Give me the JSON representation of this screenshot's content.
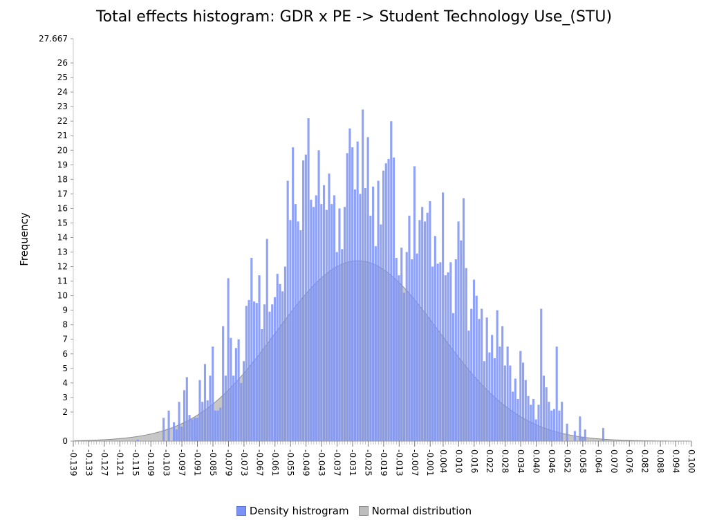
{
  "chart_data": {
    "type": "bar",
    "title": "Total effects histogram: GDR x PE -> Student Technology Use_(STU)",
    "xlabel": "",
    "ylabel": "Frequency",
    "ylim": [
      0,
      27.667
    ],
    "xlim": [
      -0.139,
      0.1
    ],
    "y_ticks": [
      "0",
      "2",
      "3",
      "4",
      "5",
      "6",
      "7",
      "8",
      "9",
      "10",
      "11",
      "12",
      "13",
      "14",
      "15",
      "16",
      "17",
      "18",
      "19",
      "20",
      "21",
      "22",
      "23",
      "24",
      "25",
      "26",
      "27.667"
    ],
    "x_ticks": [
      "-0.139",
      "-0.133",
      "-0.127",
      "-0.121",
      "-0.115",
      "-0.109",
      "-0.103",
      "-0.097",
      "-0.091",
      "-0.085",
      "-0.079",
      "-0.073",
      "-0.067",
      "-0.061",
      "-0.055",
      "-0.049",
      "-0.043",
      "-0.037",
      "-0.031",
      "-0.025",
      "-0.019",
      "-0.013",
      "-0.007",
      "-0.001",
      "0.004",
      "0.010",
      "0.016",
      "0.022",
      "0.028",
      "0.034",
      "0.040",
      "0.046",
      "0.052",
      "0.058",
      "0.064",
      "0.070",
      "0.076",
      "0.082",
      "0.088",
      "0.094",
      "0.100"
    ],
    "bin_width": 0.001,
    "series": [
      {
        "name": "Density histrogram",
        "type": "histogram",
        "color": "#7b92f5",
        "bins": [
          {
            "x": -0.114,
            "y": 0.1
          },
          {
            "x": -0.104,
            "y": 1.6
          },
          {
            "x": -0.102,
            "y": 2.1
          },
          {
            "x": -0.1,
            "y": 1.3
          },
          {
            "x": -0.099,
            "y": 0.8
          },
          {
            "x": -0.098,
            "y": 2.7
          },
          {
            "x": -0.097,
            "y": 1.0
          },
          {
            "x": -0.096,
            "y": 3.5
          },
          {
            "x": -0.095,
            "y": 4.4
          },
          {
            "x": -0.094,
            "y": 1.8
          },
          {
            "x": -0.093,
            "y": 1.5
          },
          {
            "x": -0.092,
            "y": 1.6
          },
          {
            "x": -0.091,
            "y": 1.6
          },
          {
            "x": -0.09,
            "y": 4.2
          },
          {
            "x": -0.089,
            "y": 2.7
          },
          {
            "x": -0.088,
            "y": 5.3
          },
          {
            "x": -0.087,
            "y": 2.8
          },
          {
            "x": -0.086,
            "y": 4.5
          },
          {
            "x": -0.085,
            "y": 6.5
          },
          {
            "x": -0.084,
            "y": 2.1
          },
          {
            "x": -0.083,
            "y": 2.1
          },
          {
            "x": -0.082,
            "y": 2.3
          },
          {
            "x": -0.081,
            "y": 7.9
          },
          {
            "x": -0.08,
            "y": 4.5
          },
          {
            "x": -0.079,
            "y": 11.2
          },
          {
            "x": -0.078,
            "y": 7.1
          },
          {
            "x": -0.077,
            "y": 4.5
          },
          {
            "x": -0.076,
            "y": 6.4
          },
          {
            "x": -0.075,
            "y": 7.0
          },
          {
            "x": -0.074,
            "y": 4.0
          },
          {
            "x": -0.073,
            "y": 5.5
          },
          {
            "x": -0.072,
            "y": 9.3
          },
          {
            "x": -0.071,
            "y": 9.7
          },
          {
            "x": -0.07,
            "y": 12.6
          },
          {
            "x": -0.069,
            "y": 9.6
          },
          {
            "x": -0.068,
            "y": 9.5
          },
          {
            "x": -0.067,
            "y": 11.4
          },
          {
            "x": -0.066,
            "y": 7.7
          },
          {
            "x": -0.065,
            "y": 9.4
          },
          {
            "x": -0.064,
            "y": 13.9
          },
          {
            "x": -0.063,
            "y": 8.9
          },
          {
            "x": -0.062,
            "y": 9.4
          },
          {
            "x": -0.061,
            "y": 9.9
          },
          {
            "x": -0.06,
            "y": 11.5
          },
          {
            "x": -0.059,
            "y": 10.8
          },
          {
            "x": -0.058,
            "y": 10.3
          },
          {
            "x": -0.057,
            "y": 12.0
          },
          {
            "x": -0.056,
            "y": 17.9
          },
          {
            "x": -0.055,
            "y": 15.2
          },
          {
            "x": -0.054,
            "y": 20.2
          },
          {
            "x": -0.053,
            "y": 16.3
          },
          {
            "x": -0.052,
            "y": 15.1
          },
          {
            "x": -0.051,
            "y": 14.5
          },
          {
            "x": -0.05,
            "y": 19.3
          },
          {
            "x": -0.049,
            "y": 19.7
          },
          {
            "x": -0.048,
            "y": 22.2
          },
          {
            "x": -0.047,
            "y": 16.6
          },
          {
            "x": -0.046,
            "y": 16.1
          },
          {
            "x": -0.045,
            "y": 16.9
          },
          {
            "x": -0.044,
            "y": 20.0
          },
          {
            "x": -0.043,
            "y": 16.3
          },
          {
            "x": -0.042,
            "y": 17.6
          },
          {
            "x": -0.041,
            "y": 15.9
          },
          {
            "x": -0.04,
            "y": 18.4
          },
          {
            "x": -0.039,
            "y": 16.3
          },
          {
            "x": -0.038,
            "y": 16.9
          },
          {
            "x": -0.037,
            "y": 13.0
          },
          {
            "x": -0.036,
            "y": 16.0
          },
          {
            "x": -0.035,
            "y": 13.2
          },
          {
            "x": -0.034,
            "y": 16.1
          },
          {
            "x": -0.033,
            "y": 19.8
          },
          {
            "x": -0.032,
            "y": 21.5
          },
          {
            "x": -0.031,
            "y": 20.2
          },
          {
            "x": -0.03,
            "y": 17.3
          },
          {
            "x": -0.029,
            "y": 20.6
          },
          {
            "x": -0.028,
            "y": 17.0
          },
          {
            "x": -0.027,
            "y": 22.8
          },
          {
            "x": -0.026,
            "y": 17.4
          },
          {
            "x": -0.025,
            "y": 20.9
          },
          {
            "x": -0.024,
            "y": 15.5
          },
          {
            "x": -0.023,
            "y": 17.5
          },
          {
            "x": -0.022,
            "y": 13.4
          },
          {
            "x": -0.021,
            "y": 17.9
          },
          {
            "x": -0.02,
            "y": 14.9
          },
          {
            "x": -0.019,
            "y": 18.6
          },
          {
            "x": -0.018,
            "y": 19.1
          },
          {
            "x": -0.017,
            "y": 19.4
          },
          {
            "x": -0.016,
            "y": 22.0
          },
          {
            "x": -0.015,
            "y": 19.5
          },
          {
            "x": -0.014,
            "y": 12.6
          },
          {
            "x": -0.013,
            "y": 11.4
          },
          {
            "x": -0.012,
            "y": 13.3
          },
          {
            "x": -0.011,
            "y": 10.2
          },
          {
            "x": -0.01,
            "y": 13.0
          },
          {
            "x": -0.009,
            "y": 15.5
          },
          {
            "x": -0.008,
            "y": 12.5
          },
          {
            "x": -0.007,
            "y": 18.9
          },
          {
            "x": -0.006,
            "y": 12.9
          },
          {
            "x": -0.005,
            "y": 15.2
          },
          {
            "x": -0.004,
            "y": 16.1
          },
          {
            "x": -0.003,
            "y": 15.1
          },
          {
            "x": -0.002,
            "y": 15.7
          },
          {
            "x": -0.001,
            "y": 16.5
          },
          {
            "x": 0.0,
            "y": 12.0
          },
          {
            "x": 0.001,
            "y": 14.1
          },
          {
            "x": 0.002,
            "y": 12.2
          },
          {
            "x": 0.003,
            "y": 12.3
          },
          {
            "x": 0.004,
            "y": 17.1
          },
          {
            "x": 0.005,
            "y": 11.4
          },
          {
            "x": 0.006,
            "y": 11.6
          },
          {
            "x": 0.007,
            "y": 12.3
          },
          {
            "x": 0.008,
            "y": 8.8
          },
          {
            "x": 0.009,
            "y": 12.5
          },
          {
            "x": 0.01,
            "y": 15.1
          },
          {
            "x": 0.011,
            "y": 13.8
          },
          {
            "x": 0.012,
            "y": 16.7
          },
          {
            "x": 0.013,
            "y": 11.9
          },
          {
            "x": 0.014,
            "y": 7.6
          },
          {
            "x": 0.015,
            "y": 9.1
          },
          {
            "x": 0.016,
            "y": 11.1
          },
          {
            "x": 0.017,
            "y": 10.0
          },
          {
            "x": 0.018,
            "y": 8.4
          },
          {
            "x": 0.019,
            "y": 9.1
          },
          {
            "x": 0.02,
            "y": 5.5
          },
          {
            "x": 0.021,
            "y": 8.5
          },
          {
            "x": 0.022,
            "y": 6.1
          },
          {
            "x": 0.023,
            "y": 7.3
          },
          {
            "x": 0.024,
            "y": 5.7
          },
          {
            "x": 0.025,
            "y": 9.0
          },
          {
            "x": 0.026,
            "y": 6.5
          },
          {
            "x": 0.027,
            "y": 7.9
          },
          {
            "x": 0.028,
            "y": 5.2
          },
          {
            "x": 0.029,
            "y": 6.5
          },
          {
            "x": 0.03,
            "y": 5.2
          },
          {
            "x": 0.031,
            "y": 3.4
          },
          {
            "x": 0.032,
            "y": 4.3
          },
          {
            "x": 0.033,
            "y": 2.9
          },
          {
            "x": 0.034,
            "y": 6.2
          },
          {
            "x": 0.035,
            "y": 5.4
          },
          {
            "x": 0.036,
            "y": 4.2
          },
          {
            "x": 0.037,
            "y": 3.1
          },
          {
            "x": 0.038,
            "y": 2.5
          },
          {
            "x": 0.039,
            "y": 2.9
          },
          {
            "x": 0.04,
            "y": 1.5
          },
          {
            "x": 0.041,
            "y": 2.5
          },
          {
            "x": 0.042,
            "y": 9.1
          },
          {
            "x": 0.043,
            "y": 4.5
          },
          {
            "x": 0.044,
            "y": 3.7
          },
          {
            "x": 0.045,
            "y": 2.7
          },
          {
            "x": 0.046,
            "y": 2.1
          },
          {
            "x": 0.047,
            "y": 2.2
          },
          {
            "x": 0.048,
            "y": 6.5
          },
          {
            "x": 0.049,
            "y": 2.1
          },
          {
            "x": 0.05,
            "y": 2.7
          },
          {
            "x": 0.052,
            "y": 1.2
          },
          {
            "x": 0.055,
            "y": 0.7
          },
          {
            "x": 0.057,
            "y": 1.7
          },
          {
            "x": 0.058,
            "y": 0.3
          },
          {
            "x": 0.059,
            "y": 0.8
          },
          {
            "x": 0.066,
            "y": 0.9
          }
        ]
      },
      {
        "name": "Normal distribution",
        "type": "area",
        "color": "#bdbdbd",
        "mean": -0.029,
        "sd": 0.0315,
        "peak": 12.4
      }
    ],
    "grid": false,
    "legend_position": "bottom"
  }
}
